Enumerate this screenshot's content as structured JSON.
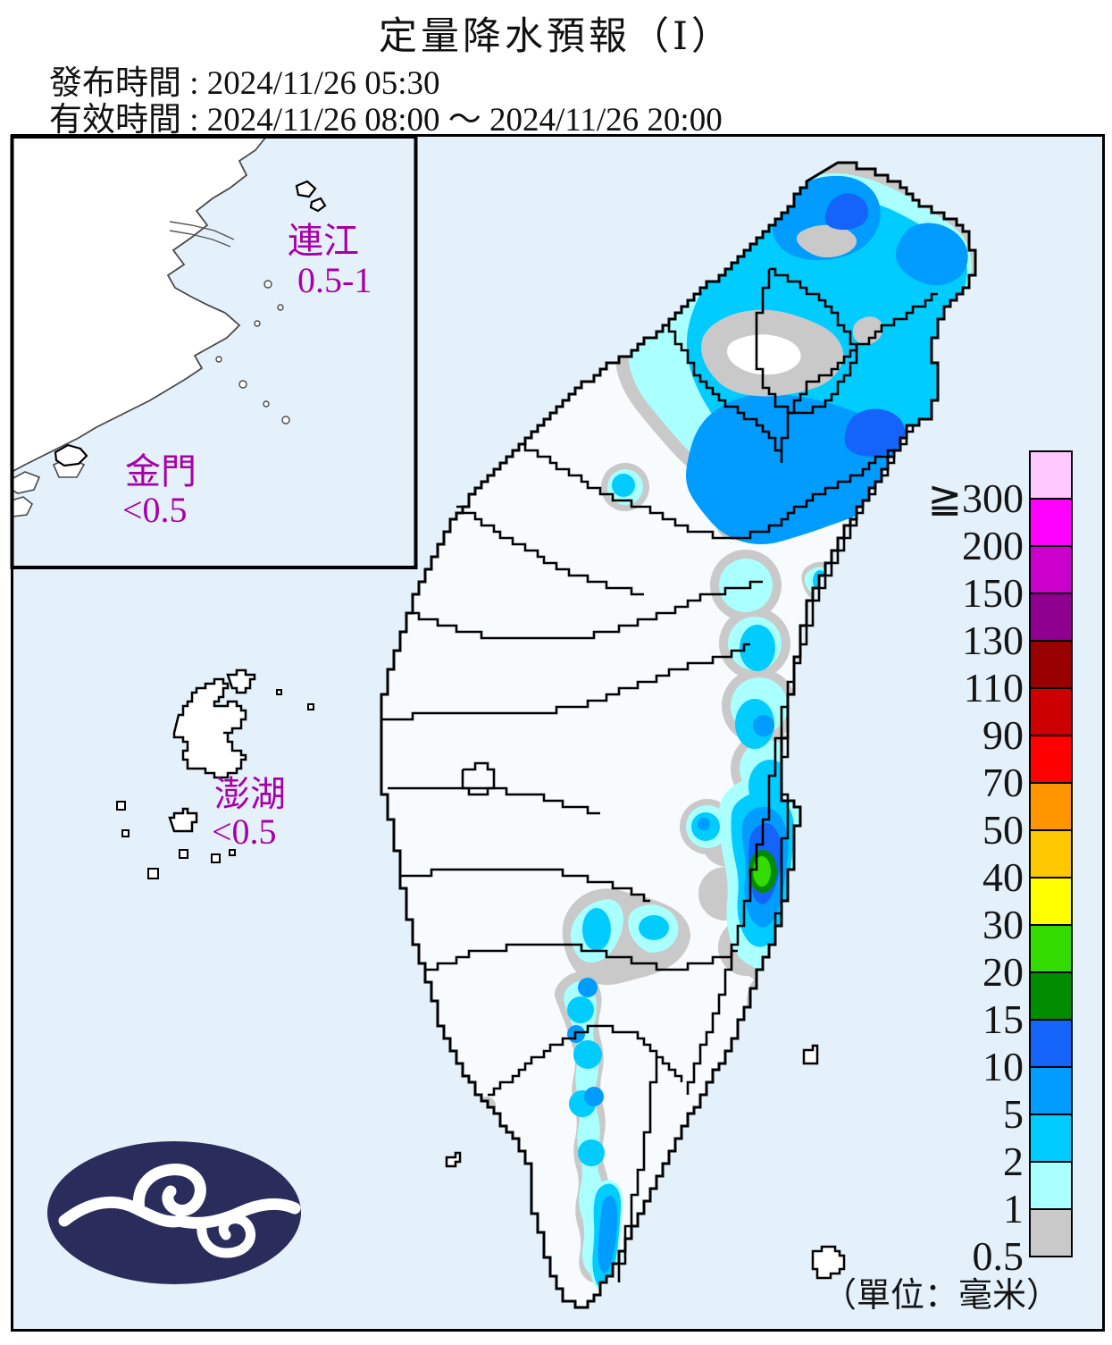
{
  "header": {
    "title": "定量降水預報（Ⅰ）",
    "issued": "發布時間 : 2024/11/26 05:30",
    "valid": "有效時間 : 2024/11/26 08:00 ～ 2024/11/26 20:00"
  },
  "regions": {
    "lienchiang": {
      "name": "連江",
      "value": "0.5-1"
    },
    "kinmen": {
      "name": "金門",
      "value": "<0.5"
    },
    "penghu": {
      "name": "澎湖",
      "value": "<0.5"
    }
  },
  "legend": {
    "unit_note": "（單位：毫米）",
    "items": [
      {
        "label": "≧300",
        "color": "#FFC8FF"
      },
      {
        "label": "200",
        "color": "#FF00FF"
      },
      {
        "label": "150",
        "color": "#CC00CC"
      },
      {
        "label": "130",
        "color": "#900090"
      },
      {
        "label": "110",
        "color": "#990000"
      },
      {
        "label": "90",
        "color": "#CC0000"
      },
      {
        "label": "70",
        "color": "#FF0000"
      },
      {
        "label": "50",
        "color": "#FF9600"
      },
      {
        "label": "40",
        "color": "#FFC800"
      },
      {
        "label": "30",
        "color": "#FFFF00"
      },
      {
        "label": "20",
        "color": "#33DB00"
      },
      {
        "label": "15",
        "color": "#008D00"
      },
      {
        "label": "10",
        "color": "#1564FA"
      },
      {
        "label": "5",
        "color": "#009CFF"
      },
      {
        "label": "2",
        "color": "#00CCFF"
      },
      {
        "label": "1",
        "color": "#AAFFFF"
      },
      {
        "label": "0.5",
        "color": "#C9C9C9"
      }
    ]
  },
  "palette": {
    "sea": "#E4F1FA",
    "land": "#F7FBFE",
    "white_patch": "#FFFFFF",
    "level_0p5": "#C9C9C9",
    "level_1": "#AAFFFF",
    "level_2": "#00CCFF",
    "level_5": "#009CFF",
    "level_10": "#1564FA",
    "level_15": "#008D00",
    "level_20": "#33DB00",
    "label_purple": "#A800A8",
    "logo_navy": "#2A2D5C"
  }
}
